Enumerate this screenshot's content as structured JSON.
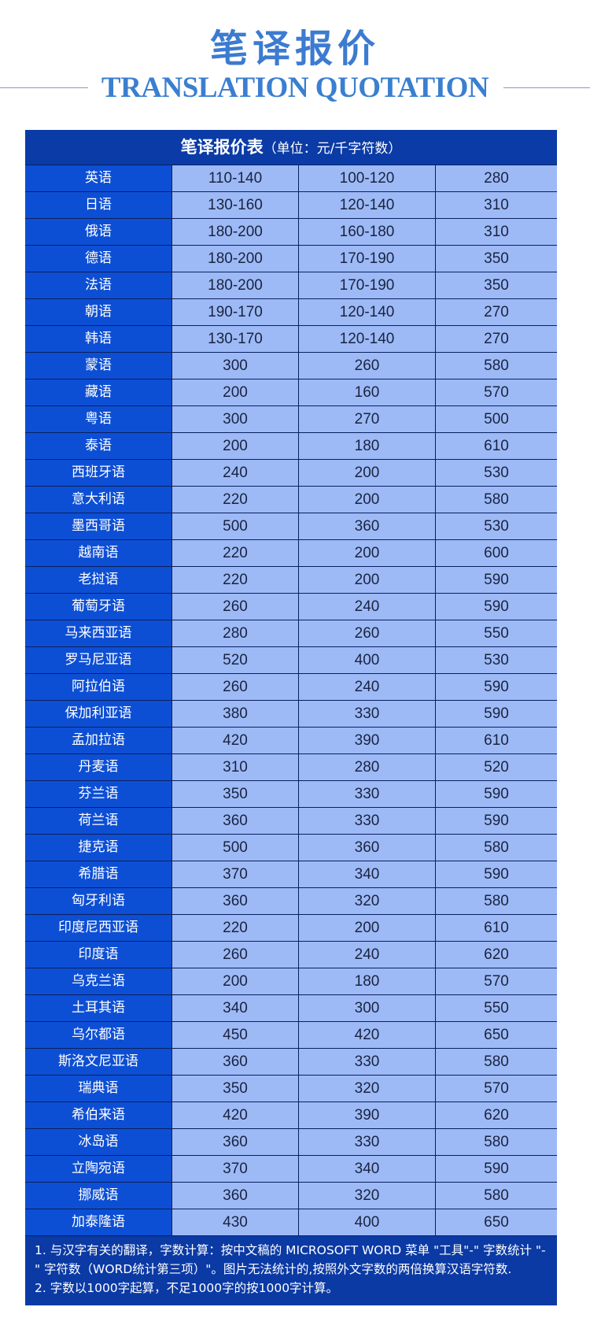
{
  "header": {
    "title_cn": "笔译报价",
    "title_en": "TRANSLATION QUOTATION"
  },
  "table": {
    "title": "笔译报价表",
    "unit": "（单位：元/千字符数）",
    "rows": [
      [
        "英语",
        "110-140",
        "100-120",
        "280"
      ],
      [
        "日语",
        "130-160",
        "120-140",
        "310"
      ],
      [
        "俄语",
        "180-200",
        "160-180",
        "310"
      ],
      [
        "德语",
        "180-200",
        "170-190",
        "350"
      ],
      [
        "法语",
        "180-200",
        "170-190",
        "350"
      ],
      [
        "朝语",
        "190-170",
        "120-140",
        "270"
      ],
      [
        "韩语",
        "130-170",
        "120-140",
        "270"
      ],
      [
        "蒙语",
        "300",
        "260",
        "580"
      ],
      [
        "藏语",
        "200",
        "160",
        "570"
      ],
      [
        "粤语",
        "300",
        "270",
        "500"
      ],
      [
        "泰语",
        "200",
        "180",
        "610"
      ],
      [
        "西班牙语",
        "240",
        "200",
        "530"
      ],
      [
        "意大利语",
        "220",
        "200",
        "580"
      ],
      [
        "墨西哥语",
        "500",
        "360",
        "530"
      ],
      [
        "越南语",
        "220",
        "200",
        "600"
      ],
      [
        "老挝语",
        "220",
        "200",
        "590"
      ],
      [
        "葡萄牙语",
        "260",
        "240",
        "590"
      ],
      [
        "马来西亚语",
        "280",
        "260",
        "550"
      ],
      [
        "罗马尼亚语",
        "520",
        "400",
        "530"
      ],
      [
        "阿拉伯语",
        "260",
        "240",
        "590"
      ],
      [
        "保加利亚语",
        "380",
        "330",
        "590"
      ],
      [
        "孟加拉语",
        "420",
        "390",
        "610"
      ],
      [
        "丹麦语",
        "310",
        "280",
        "520"
      ],
      [
        "芬兰语",
        "350",
        "330",
        "590"
      ],
      [
        "荷兰语",
        "360",
        "330",
        "590"
      ],
      [
        "捷克语",
        "500",
        "360",
        "580"
      ],
      [
        "希腊语",
        "370",
        "340",
        "590"
      ],
      [
        "匈牙利语",
        "360",
        "320",
        "580"
      ],
      [
        "印度尼西亚语",
        "220",
        "200",
        "610"
      ],
      [
        "印度语",
        "260",
        "240",
        "620"
      ],
      [
        "乌克兰语",
        "200",
        "180",
        "570"
      ],
      [
        "土耳其语",
        "340",
        "300",
        "550"
      ],
      [
        "乌尔都语",
        "450",
        "420",
        "650"
      ],
      [
        "斯洛文尼亚语",
        "360",
        "330",
        "580"
      ],
      [
        "瑞典语",
        "350",
        "320",
        "570"
      ],
      [
        "希伯来语",
        "420",
        "390",
        "620"
      ],
      [
        "冰岛语",
        "360",
        "330",
        "580"
      ],
      [
        "立陶宛语",
        "370",
        "340",
        "590"
      ],
      [
        "挪威语",
        "360",
        "320",
        "580"
      ],
      [
        "加泰隆语",
        "430",
        "400",
        "650"
      ]
    ]
  },
  "notes": [
    "1. 与汉字有关的翻译，字数计算：按中文稿的 MICROSOFT WORD 菜单 \"工具\"-\" 字数统计 \"-\" 字符数（WORD统计第三项）\"。图片无法统计的,按照外文字数的两倍换算汉语字符数.",
    "2. 字数以1000字起算，不足1000字的按1000字计算。"
  ],
  "colors": {
    "title": "#3c7bd0",
    "header_bg": "#0b3aa5",
    "lang_bg": "#0d4fd4",
    "cell_bg": "#9dbaf6"
  }
}
